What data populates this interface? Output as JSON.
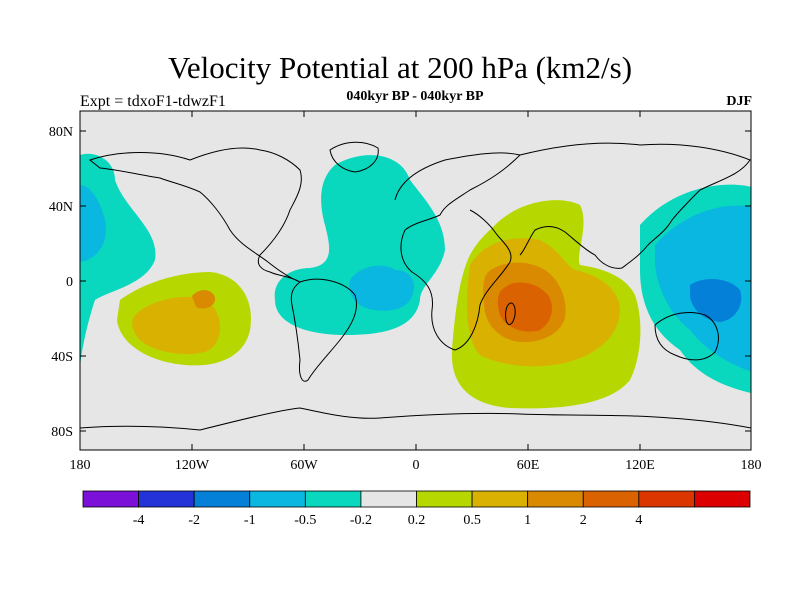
{
  "title": "Velocity Potential at 200 hPa (km2/s)",
  "subtitle": "040kyr BP - 040kyr BP",
  "left_label": "Expt = tdxoF1-tdwzF1",
  "right_label": "DJF",
  "axes": {
    "y_ticks": [
      "80N",
      "40N",
      "0",
      "40S",
      "80S"
    ],
    "x_ticks": [
      "180",
      "120W",
      "60W",
      "0",
      "60E",
      "120E",
      "180"
    ]
  },
  "colorbar": {
    "colors": [
      "#7b10d8",
      "#2333d8",
      "#0580d8",
      "#09b7e0",
      "#09d8bf",
      "#e6e6e6",
      "#b6d800",
      "#d9b100",
      "#d98a00",
      "#db6200",
      "#dc3600",
      "#dc0000"
    ],
    "labels": [
      "-4",
      "-2",
      "-1",
      "-0.5",
      "-0.2",
      "0.2",
      "0.5",
      "1",
      "2",
      "4"
    ]
  }
}
